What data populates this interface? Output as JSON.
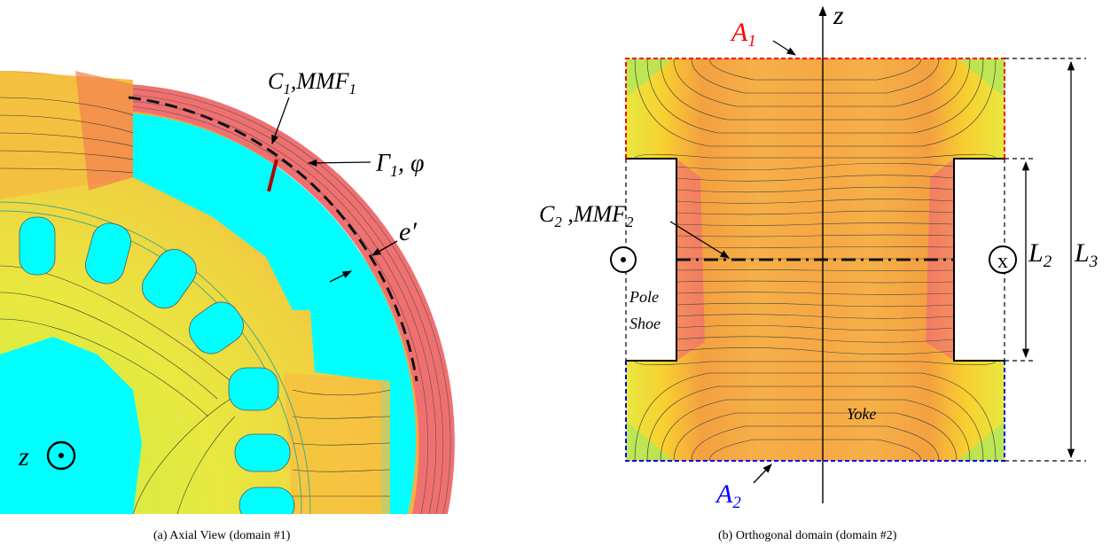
{
  "panel_a": {
    "caption": "(a) Axial View (domain #1)",
    "labels": {
      "c1": "C",
      "c1_sub": "1",
      "c1_sep": ",",
      "mmf1": "MMF",
      "mmf1_sub": "1",
      "gamma1": "Γ",
      "gamma1_sub": "1",
      "gamma1_tail": ", φ",
      "eprime": "e′",
      "z": "z"
    }
  },
  "panel_b": {
    "caption": "(b) Orthogonal domain (domain #2)",
    "labels": {
      "z": "z",
      "a1": "A",
      "a1_sub": "1",
      "a2": "A",
      "a2_sub": "2",
      "c2": "C",
      "c2_sub": "2",
      "c2_sep": " ,",
      "mmf2": "MMF",
      "mmf2_sub": "2",
      "l2": "L",
      "l2_sub": "2",
      "l3": "L",
      "l3_sub": "3",
      "pole": "Pole",
      "shoe": "Shoe",
      "yoke": "Yoke",
      "cross": "x"
    }
  },
  "colors": {
    "a1": "#ff0000",
    "a2": "#0000ff",
    "cyan": "#00ffff",
    "rim": "#f07070"
  }
}
